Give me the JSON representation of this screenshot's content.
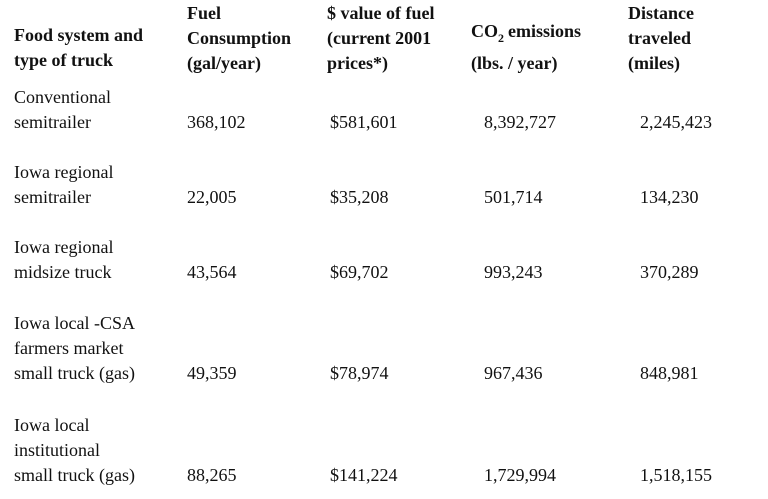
{
  "table": {
    "header": [
      [
        "Food system and",
        "type of truck"
      ],
      [
        "Fuel",
        "Consumption",
        "(gal/year)"
      ],
      [
        "$ value of fuel",
        "(current 2001",
        "prices*)"
      ],
      [
        {
          "base": "CO",
          "sub": "2",
          "rest": "emissions"
        },
        "(lbs. / year)"
      ],
      [
        "Distance",
        "traveled",
        "(miles)"
      ]
    ],
    "rows": [
      {
        "label": [
          "Conventional",
          "semitrailer"
        ],
        "cells": [
          "368,102",
          "$581,601",
          "8,392,727",
          "2,245,423"
        ]
      },
      {
        "label": [
          "Iowa regional",
          "semitrailer"
        ],
        "cells": [
          "22,005",
          "$35,208",
          "501,714",
          "134,230"
        ]
      },
      {
        "label": [
          "Iowa regional",
          "midsize truck"
        ],
        "cells": [
          "43,564",
          "$69,702",
          "993,243",
          "370,289"
        ]
      },
      {
        "label": [
          "Iowa local -CSA",
          "farmers market",
          "small truck (gas)"
        ],
        "cells": [
          "49,359",
          "$78,974",
          "967,436",
          "848,981"
        ]
      },
      {
        "label": [
          "Iowa local",
          "institutional",
          "small truck (gas)"
        ],
        "cells": [
          "88,265",
          "$141,224",
          "1,729,994",
          "1,518,155"
        ]
      }
    ]
  }
}
